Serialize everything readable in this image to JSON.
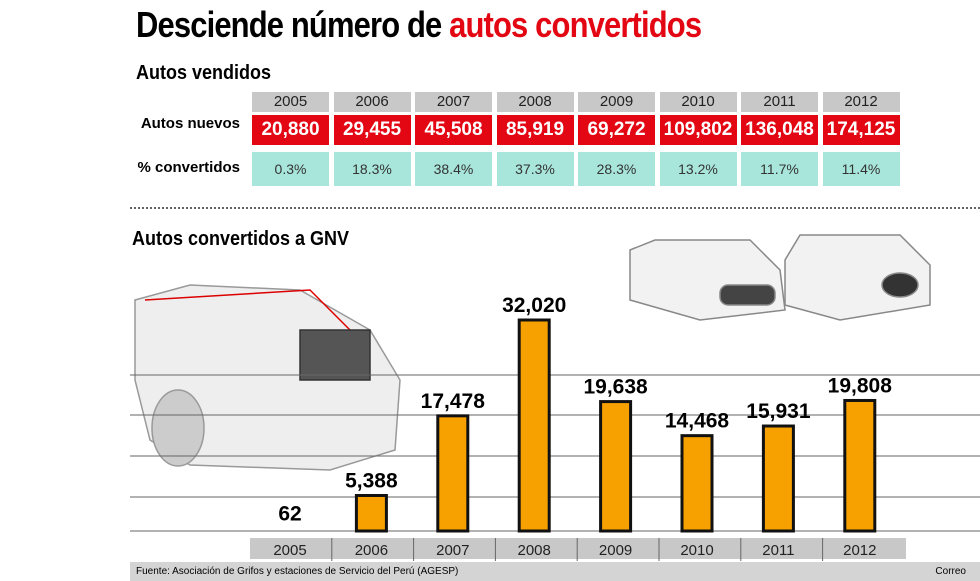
{
  "title": {
    "part1": "Desciende número de ",
    "part2": "autos convertidos"
  },
  "table": {
    "subtitle": "Autos vendidos",
    "years": [
      "2005",
      "2006",
      "2007",
      "2008",
      "2009",
      "2010",
      "2011",
      "2012"
    ],
    "row1_label": "Autos nuevos",
    "row1": [
      "20,880",
      "29,455",
      "45,508",
      "85,919",
      "69,272",
      "109,802",
      "136,048",
      "174,125"
    ],
    "row2_label": "% convertidos",
    "row2": [
      "0.3%",
      "18.3%",
      "38.4%",
      "37.3%",
      "28.3%",
      "13.2%",
      "11.7%",
      "11.4%"
    ]
  },
  "colors": {
    "accent": "#e30613",
    "bar": "#f7a100",
    "teal": "#a8e6dc",
    "header": "#c8c8c8"
  },
  "chart_data": {
    "type": "bar",
    "title": "Autos convertidos a GNV",
    "categories": [
      "2005",
      "2006",
      "2007",
      "2008",
      "2009",
      "2010",
      "2011",
      "2012"
    ],
    "values": [
      62,
      5388,
      17478,
      32020,
      19638,
      14468,
      15931,
      19808
    ],
    "data_labels": [
      "62",
      "5,388",
      "17,478",
      "32,020",
      "19,638",
      "14,468",
      "15,931",
      "19,808"
    ],
    "xlabel": "",
    "ylabel": ""
  },
  "footer": {
    "source": "Fuente: Asociación de Grifos y estaciones de Servicio del Perú (AGESP)",
    "credit": "Correo"
  }
}
